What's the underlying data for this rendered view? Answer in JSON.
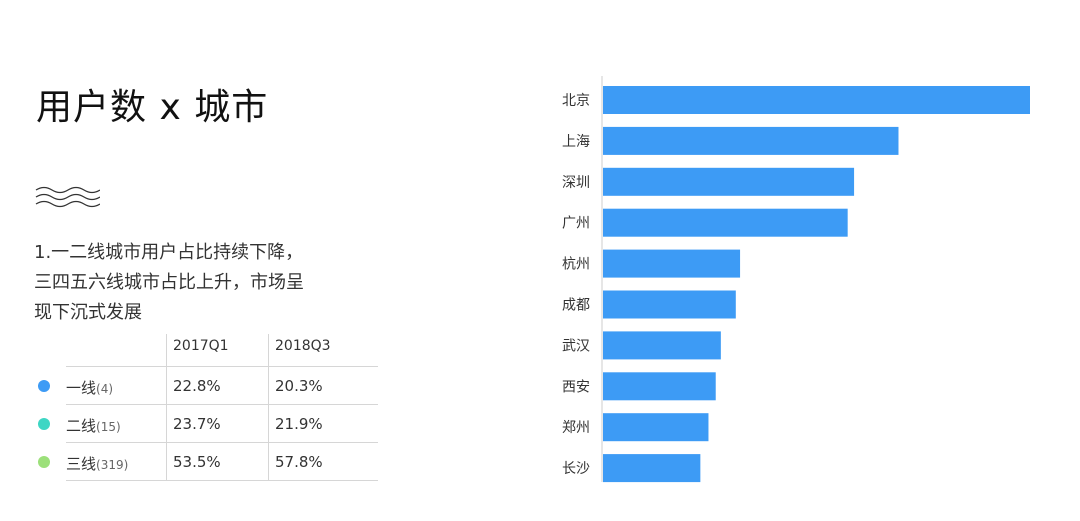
{
  "title": "用户数 x 城市",
  "description": [
    "1.一二线城市用户占比持续下降，",
    "三四五六线城市占比上升，市场呈",
    "现下沉式发展"
  ],
  "tier_table": {
    "columns": [
      "2017Q1",
      "2018Q3"
    ],
    "rows": [
      {
        "name": "一线",
        "count": "(4)",
        "q1": "22.8%",
        "q3": "20.3%",
        "color": "#3d9bf5"
      },
      {
        "name": "二线",
        "count": "(15)",
        "q1": "23.7%",
        "q3": "21.9%",
        "color": "#3ed6c4"
      },
      {
        "name": "三线",
        "count": "(319)",
        "q1": "53.5%",
        "q3": "57.8%",
        "color": "#9ce07a"
      }
    ]
  },
  "colors": {
    "bar": "#3d9bf5",
    "axis": "#cccccc"
  },
  "chart_data": {
    "type": "bar",
    "orientation": "horizontal",
    "categories": [
      "北京",
      "上海",
      "深圳",
      "广州",
      "杭州",
      "成都",
      "武汉",
      "西安",
      "郑州",
      "长沙"
    ],
    "values": [
      100,
      69.2,
      58.8,
      57.3,
      32.1,
      31.1,
      27.6,
      26.4,
      24.7,
      22.8
    ],
    "xlim": [
      0,
      100
    ],
    "grid": false,
    "legend": "none"
  }
}
